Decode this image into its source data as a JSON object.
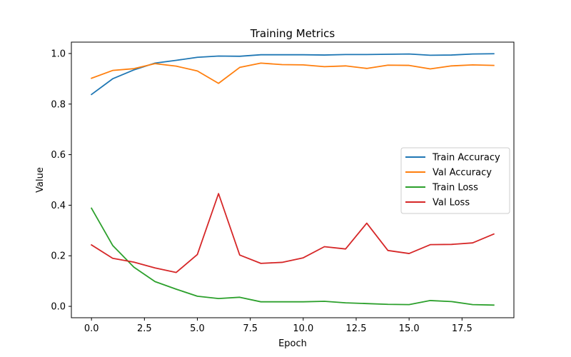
{
  "chart_data": {
    "type": "line",
    "title": "Training Metrics",
    "xlabel": "Epoch",
    "ylabel": "Value",
    "xlim": [
      -0.95,
      19.95
    ],
    "ylim": [
      -0.045,
      1.045
    ],
    "xticks": [
      0.0,
      2.5,
      5.0,
      7.5,
      10.0,
      12.5,
      15.0,
      17.5
    ],
    "xtick_labels": [
      "0.0",
      "2.5",
      "5.0",
      "7.5",
      "10.0",
      "12.5",
      "15.0",
      "17.5"
    ],
    "yticks": [
      0.0,
      0.2,
      0.4,
      0.6,
      0.8,
      1.0
    ],
    "ytick_labels": [
      "0.0",
      "0.2",
      "0.4",
      "0.6",
      "0.8",
      "1.0"
    ],
    "grid": false,
    "legend_position": "center-right",
    "x": [
      0,
      1,
      2,
      3,
      4,
      5,
      6,
      7,
      8,
      9,
      10,
      11,
      12,
      13,
      14,
      15,
      16,
      17,
      18,
      19
    ],
    "series": [
      {
        "name": "Train Accuracy",
        "color": "#1f77b4",
        "values": [
          0.838,
          0.9,
          0.935,
          0.962,
          0.973,
          0.985,
          0.99,
          0.989,
          0.995,
          0.995,
          0.995,
          0.994,
          0.996,
          0.996,
          0.997,
          0.998,
          0.993,
          0.994,
          0.998,
          0.999
        ]
      },
      {
        "name": "Val Accuracy",
        "color": "#ff7f0e",
        "values": [
          0.902,
          0.933,
          0.94,
          0.96,
          0.95,
          0.931,
          0.882,
          0.945,
          0.962,
          0.956,
          0.955,
          0.948,
          0.951,
          0.941,
          0.954,
          0.953,
          0.939,
          0.951,
          0.955,
          0.953
        ]
      },
      {
        "name": "Train Loss",
        "color": "#2ca02c",
        "values": [
          0.388,
          0.241,
          0.155,
          0.098,
          0.068,
          0.04,
          0.031,
          0.036,
          0.018,
          0.018,
          0.018,
          0.02,
          0.014,
          0.011,
          0.008,
          0.007,
          0.023,
          0.019,
          0.007,
          0.005
        ]
      },
      {
        "name": "Val Loss",
        "color": "#d62728",
        "values": [
          0.243,
          0.19,
          0.175,
          0.152,
          0.134,
          0.205,
          0.446,
          0.203,
          0.17,
          0.174,
          0.192,
          0.236,
          0.227,
          0.329,
          0.221,
          0.209,
          0.244,
          0.245,
          0.251,
          0.286
        ]
      }
    ]
  }
}
